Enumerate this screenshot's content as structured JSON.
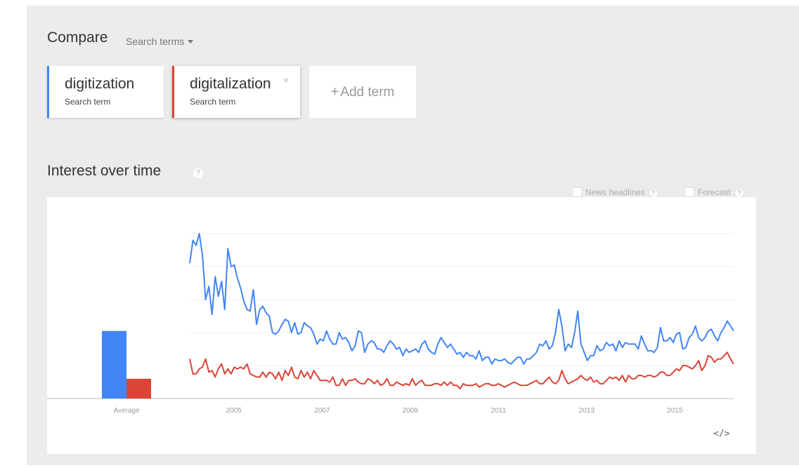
{
  "header": {
    "title": "Compare",
    "dropdown_label": "Search terms"
  },
  "terms": [
    {
      "label": "digitization",
      "sub": "Search term",
      "color": "#4285f4"
    },
    {
      "label": "digitalization",
      "sub": "Search term",
      "color": "#db4437",
      "close": "×"
    }
  ],
  "add_term": {
    "plus": "+",
    "label": "Add term"
  },
  "interest": {
    "title": "Interest over time",
    "help": "?",
    "options": [
      {
        "label": "News headlines",
        "help": "?"
      },
      {
        "label": "Forecast",
        "help": "?"
      }
    ]
  },
  "embed_label": "</>",
  "chart_data": {
    "type": "line",
    "x_start": "2004-01",
    "x_end": "2016-05",
    "x_ticks": [
      "2005",
      "2007",
      "2009",
      "2011",
      "2013",
      "2015"
    ],
    "average_label": "Average",
    "grid": true,
    "ylim": [
      0,
      100
    ],
    "averages": [
      41,
      12
    ],
    "series": [
      {
        "name": "digitization",
        "color": "#4285f4",
        "values": [
          82,
          96,
          93,
          100,
          87,
          60,
          68,
          51,
          74,
          62,
          71,
          54,
          91,
          80,
          81,
          73,
          67,
          59,
          54,
          53,
          66,
          45,
          54,
          56,
          52,
          50,
          40,
          39,
          41,
          45,
          48,
          47,
          40,
          46,
          39,
          40,
          46,
          44,
          43,
          39,
          33,
          36,
          35,
          41,
          36,
          33,
          33,
          40,
          36,
          37,
          34,
          29,
          32,
          41,
          40,
          28,
          33,
          35,
          34,
          30,
          30,
          28,
          32,
          35,
          33,
          30,
          31,
          26,
          30,
          28,
          29,
          30,
          28,
          33,
          35,
          30,
          28,
          27,
          33,
          37,
          34,
          31,
          33,
          30,
          27,
          28,
          25,
          28,
          26,
          26,
          24,
          29,
          23,
          25,
          25,
          21,
          24,
          23,
          23,
          24,
          22,
          21,
          23,
          25,
          25,
          21,
          24,
          24,
          26,
          28,
          33,
          32,
          35,
          30,
          32,
          40,
          54,
          44,
          29,
          33,
          31,
          40,
          53,
          33,
          28,
          23,
          26,
          26,
          32,
          29,
          30,
          34,
          32,
          33,
          29,
          35,
          31,
          34,
          33,
          33,
          33,
          30,
          38,
          33,
          29,
          29,
          28,
          31,
          43,
          35,
          35,
          37,
          34,
          39,
          40,
          30,
          31,
          37,
          39,
          44,
          37,
          35,
          37,
          41,
          42,
          38,
          35,
          40,
          43,
          47,
          44,
          41
        ]
      },
      {
        "name": "digitalization",
        "color": "#db4437",
        "values": [
          24,
          15,
          15,
          18,
          19,
          24,
          16,
          17,
          13,
          18,
          21,
          15,
          18,
          15,
          19,
          18,
          19,
          18,
          21,
          15,
          14,
          13,
          13,
          16,
          13,
          16,
          15,
          12,
          16,
          11,
          17,
          14,
          19,
          13,
          12,
          17,
          13,
          16,
          12,
          17,
          14,
          11,
          11,
          11,
          10,
          13,
          8,
          8,
          12,
          8,
          11,
          11,
          12,
          10,
          9,
          9,
          12,
          11,
          9,
          11,
          8,
          9,
          12,
          8,
          8,
          10,
          9,
          8,
          9,
          8,
          12,
          8,
          10,
          11,
          8,
          8,
          8,
          9,
          9,
          8,
          10,
          8,
          10,
          8,
          8,
          6,
          9,
          8,
          8,
          8,
          9,
          7,
          8,
          9,
          9,
          8,
          8,
          9,
          8,
          7,
          8,
          9,
          10,
          9,
          8,
          8,
          8,
          9,
          10,
          11,
          9,
          9,
          11,
          13,
          10,
          9,
          11,
          17,
          12,
          9,
          10,
          11,
          12,
          14,
          12,
          11,
          13,
          10,
          11,
          9,
          9,
          11,
          13,
          12,
          13,
          11,
          14,
          10,
          14,
          12,
          12,
          14,
          14,
          13,
          14,
          14,
          13,
          14,
          16,
          16,
          14,
          14,
          16,
          18,
          17,
          20,
          20,
          19,
          18,
          20,
          23,
          17,
          20,
          26,
          25,
          22,
          24,
          24,
          26,
          28,
          24,
          21
        ]
      }
    ]
  }
}
